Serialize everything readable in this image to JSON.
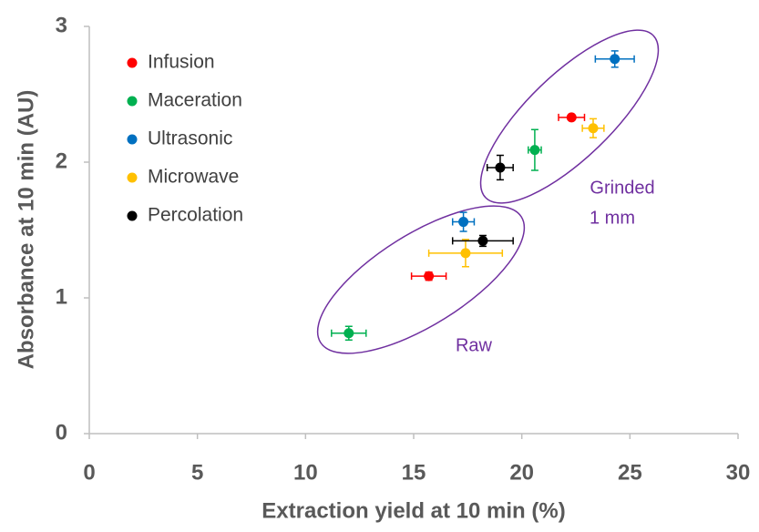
{
  "chart_data": {
    "type": "scatter",
    "xlabel": "Extraction yield at 10 min (%)",
    "ylabel": "Absorbance at 10 min (AU)",
    "xlim": [
      0,
      30
    ],
    "xticks": [
      0,
      5,
      10,
      15,
      20,
      25,
      30
    ],
    "ylim": [
      0,
      3
    ],
    "yticks": [
      0,
      1,
      2,
      3
    ],
    "grid": false,
    "legend": "upper left",
    "series": [
      {
        "name": "Infusion",
        "color": "#ff0000",
        "x": [
          15.7,
          22.3
        ],
        "y": [
          1.16,
          2.33
        ],
        "xerr": [
          0.8,
          0.6
        ],
        "yerr": [
          0.03,
          0.02
        ]
      },
      {
        "name": "Maceration",
        "color": "#00b050",
        "x": [
          12.0,
          20.6
        ],
        "y": [
          0.74,
          2.09
        ],
        "xerr": [
          0.8,
          0.3
        ],
        "yerr": [
          0.05,
          0.15
        ]
      },
      {
        "name": "Ultrasonic",
        "color": "#0070c0",
        "x": [
          17.3,
          24.3
        ],
        "y": [
          1.56,
          2.76
        ],
        "xerr": [
          0.5,
          0.9
        ],
        "yerr": [
          0.07,
          0.06
        ]
      },
      {
        "name": "Microwave",
        "color": "#ffc000",
        "x": [
          17.4,
          23.3
        ],
        "y": [
          1.33,
          2.25
        ],
        "xerr": [
          1.7,
          0.5
        ],
        "yerr": [
          0.1,
          0.07
        ]
      },
      {
        "name": "Percolation",
        "color": "#000000",
        "x": [
          18.2,
          19.0
        ],
        "y": [
          1.42,
          1.96
        ],
        "xerr": [
          1.4,
          0.6
        ],
        "yerr": [
          0.04,
          0.09
        ]
      }
    ],
    "annotations": [
      "Grinded",
      "1 mm",
      "Raw"
    ]
  }
}
